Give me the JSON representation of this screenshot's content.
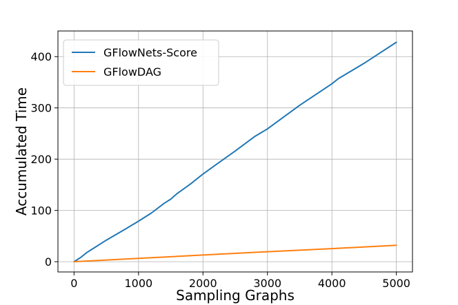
{
  "chart_data": {
    "type": "line",
    "xlabel": "Sampling Graphs",
    "ylabel": "Accumulated Time",
    "xlim": [
      -250,
      5250
    ],
    "ylim": [
      -20,
      450
    ],
    "xticks": [
      0,
      1000,
      2000,
      3000,
      4000,
      5000
    ],
    "yticks": [
      0,
      100,
      200,
      300,
      400
    ],
    "grid": true,
    "legend_position": "top-left",
    "series": [
      {
        "name": "GFlowNets-Score",
        "color": "#1f77b4",
        "x": [
          0,
          100,
          200,
          300,
          500,
          800,
          1000,
          1200,
          1400,
          1500,
          1600,
          1800,
          2000,
          2200,
          2500,
          2800,
          3000,
          3500,
          4000,
          4100,
          4500,
          5000
        ],
        "y": [
          0,
          8,
          18,
          26,
          42,
          64,
          79,
          95,
          114,
          122,
          133,
          151,
          171,
          189,
          216,
          244,
          259,
          305,
          347,
          357,
          387,
          428
        ]
      },
      {
        "name": "GFlowDAG",
        "color": "#ff7f0e",
        "x": [
          0,
          1000,
          2000,
          3000,
          4000,
          5000
        ],
        "y": [
          0,
          6.5,
          13,
          19.5,
          25.5,
          32
        ]
      }
    ]
  }
}
